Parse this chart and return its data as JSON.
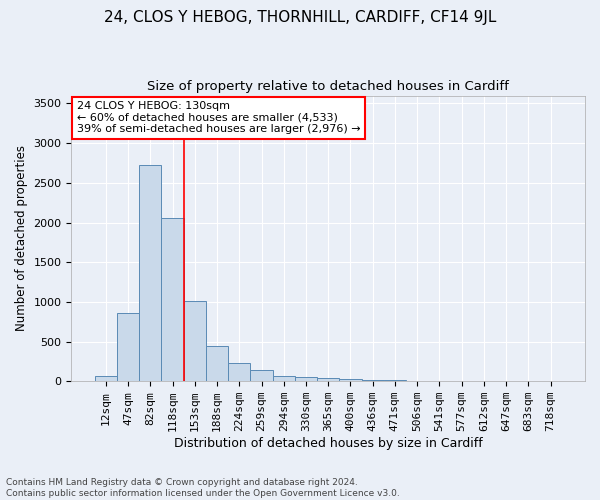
{
  "title": "24, CLOS Y HEBOG, THORNHILL, CARDIFF, CF14 9JL",
  "subtitle": "Size of property relative to detached houses in Cardiff",
  "xlabel": "Distribution of detached houses by size in Cardiff",
  "ylabel": "Number of detached properties",
  "bar_labels": [
    "12sqm",
    "47sqm",
    "82sqm",
    "118sqm",
    "153sqm",
    "188sqm",
    "224sqm",
    "259sqm",
    "294sqm",
    "330sqm",
    "365sqm",
    "400sqm",
    "436sqm",
    "471sqm",
    "506sqm",
    "541sqm",
    "577sqm",
    "612sqm",
    "647sqm",
    "683sqm",
    "718sqm"
  ],
  "bar_values": [
    62,
    860,
    2730,
    2060,
    1010,
    450,
    230,
    145,
    70,
    50,
    40,
    25,
    20,
    10,
    5,
    3,
    2,
    1,
    1,
    1,
    0
  ],
  "bar_color": "#c9d9ea",
  "bar_edge_color": "#5a8ab5",
  "vline_color": "red",
  "annotation_text": "24 CLOS Y HEBOG: 130sqm\n← 60% of detached houses are smaller (4,533)\n39% of semi-detached houses are larger (2,976) →",
  "annotation_box_color": "white",
  "annotation_box_edge_color": "red",
  "ylim": [
    0,
    3600
  ],
  "yticks": [
    0,
    500,
    1000,
    1500,
    2000,
    2500,
    3000,
    3500
  ],
  "bg_color": "#eaeff7",
  "plot_bg_color": "#eaeff7",
  "footer_text": "Contains HM Land Registry data © Crown copyright and database right 2024.\nContains public sector information licensed under the Open Government Licence v3.0.",
  "title_fontsize": 11,
  "subtitle_fontsize": 9.5,
  "xlabel_fontsize": 9,
  "ylabel_fontsize": 8.5,
  "tick_fontsize": 8,
  "footer_fontsize": 6.5,
  "annotation_fontsize": 8
}
